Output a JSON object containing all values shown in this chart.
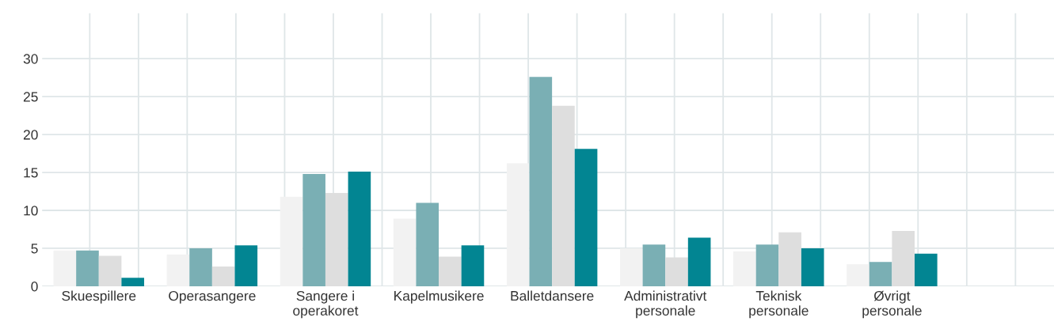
{
  "chart_data": {
    "type": "bar",
    "categories": [
      "Skuespillere",
      "Operasangere",
      "Sangere i\noperakoret",
      "Kapelmusikere",
      "Balletdansere",
      "Administrativt\npersonale",
      "Teknisk\npersonale",
      "Øvrigt\npersonale",
      null
    ],
    "series": [
      {
        "color": "#f2f2f2",
        "values": [
          4.7,
          4.2,
          11.8,
          8.9,
          16.2,
          5.0,
          4.6,
          2.9,
          null
        ]
      },
      {
        "color": "#7aafb4",
        "values": [
          4.7,
          5.0,
          14.8,
          11.0,
          27.6,
          5.5,
          5.5,
          3.2,
          null
        ]
      },
      {
        "color": "#dedede",
        "values": [
          4.0,
          2.6,
          12.3,
          3.9,
          23.8,
          3.8,
          7.1,
          7.3,
          null
        ]
      },
      {
        "color": "#028592",
        "values": [
          1.1,
          5.4,
          15.1,
          5.4,
          18.1,
          6.4,
          5.0,
          4.3,
          null
        ]
      }
    ],
    "ylim": [
      0,
      36
    ],
    "yticks": [
      0,
      5,
      10,
      15,
      20,
      25,
      30
    ],
    "grid": true
  }
}
